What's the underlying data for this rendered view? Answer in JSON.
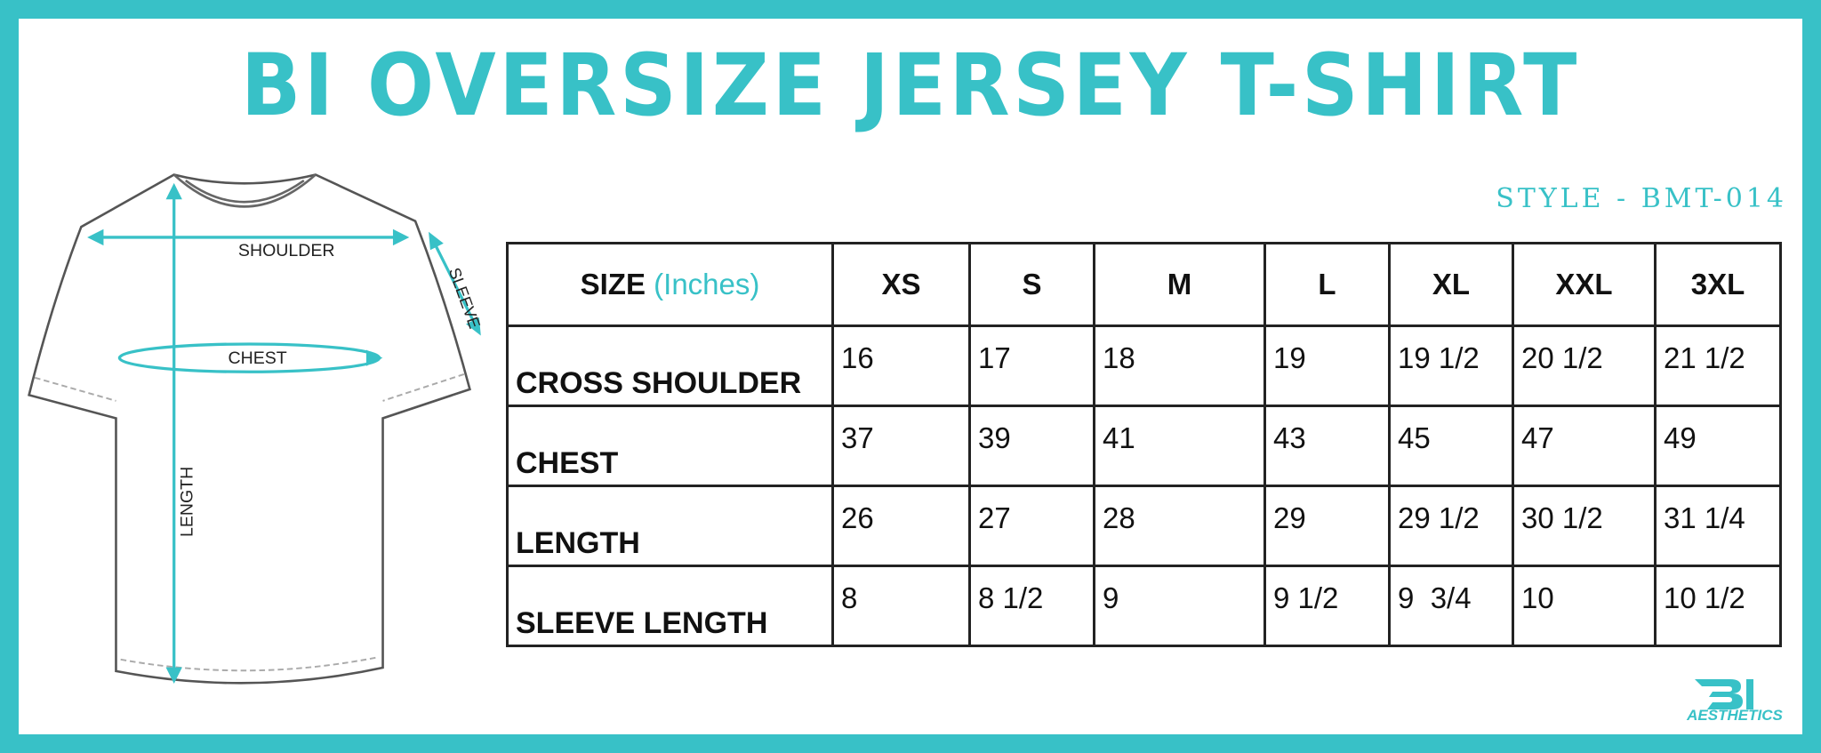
{
  "header": {
    "title": "BI OVERSIZE JERSEY T-SHIRT",
    "style": "STYLE - BMT-014"
  },
  "diagram": {
    "shoulder": "SHOULDER",
    "chest": "CHEST",
    "length": "LENGTH",
    "sleeve": "SLEEVE"
  },
  "table": {
    "size_label": "SIZE",
    "unit": "(Inches)",
    "sizes": [
      "XS",
      "S",
      "M",
      "L",
      "XL",
      "XXL",
      "3XL"
    ],
    "rows": [
      {
        "label": "CROSS SHOULDER",
        "values": [
          "16",
          "17",
          "18",
          "19",
          "19 1/2",
          "20 1/2",
          "21 1/2"
        ]
      },
      {
        "label": "CHEST",
        "values": [
          "37",
          "39",
          "41",
          "43",
          "45",
          "47",
          "49"
        ]
      },
      {
        "label": "LENGTH",
        "values": [
          "26",
          "27",
          "28",
          "29",
          "29 1/2",
          "30 1/2",
          "31 1/4"
        ]
      },
      {
        "label": "SLEEVE LENGTH",
        "values": [
          "8",
          "8 1/2",
          "9",
          "9 1/2",
          "9  3/4",
          "10",
          "10 1/2"
        ]
      }
    ]
  },
  "logo": {
    "text": "AESTHETICS"
  }
}
